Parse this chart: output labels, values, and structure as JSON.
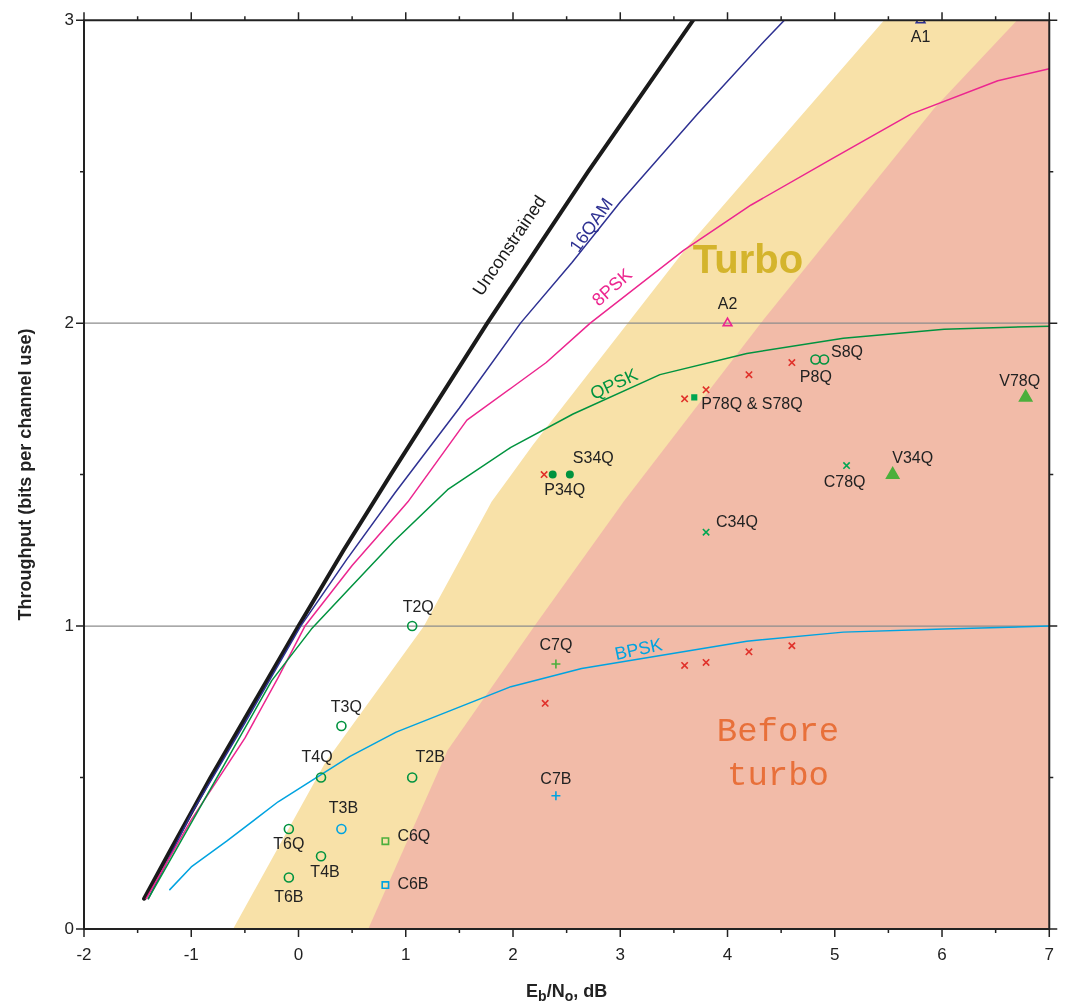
{
  "chart_data": {
    "type": "line",
    "xlabel": "E$_{b}$/N$_{o}$, dB",
    "ylabel": "Throughput (bits per channel use)",
    "xlim": [
      -2,
      7
    ],
    "ylim": [
      0,
      3
    ],
    "xticks": [
      -2,
      {
        "value": -1.5,
        "label": null
      },
      -1,
      {
        "value": -0.5,
        "label": null
      },
      0,
      {
        "value": 0.5,
        "label": null
      },
      1,
      {
        "value": 1.5,
        "label": null
      },
      2,
      {
        "value": 2.5,
        "label": null
      },
      3,
      {
        "value": 3.5,
        "label": null
      },
      4,
      {
        "value": 4.5,
        "label": null
      },
      5,
      {
        "value": 5.5,
        "label": null
      },
      6,
      {
        "value": 6.5,
        "label": null
      },
      7
    ],
    "yticks": [
      0,
      {
        "value": 0.5,
        "label": null
      },
      1,
      {
        "value": 1.5,
        "label": null
      },
      2,
      {
        "value": 2.5,
        "label": null
      },
      3
    ],
    "grid": "y",
    "legend": false,
    "series": [
      {
        "name": "Turbo",
        "type": "area",
        "color": "#f8e1a8",
        "x": [
          -0.61,
          0.25,
          1.17,
          1.8,
          2.19,
          3.62,
          5.46,
          7
        ],
        "values": [
          0,
          0.55,
          1.0,
          1.41,
          1.6,
          2.25,
          3.0,
          3.0
        ]
      },
      {
        "name": "Before turbo",
        "type": "area",
        "color": "#f2bba8",
        "x": [
          0.65,
          1.39,
          2.2,
          3.03,
          4.31,
          5.93,
          6.7,
          7
        ],
        "values": [
          0,
          0.59,
          1.0,
          1.41,
          2.0,
          2.71,
          3.0,
          3.0
        ]
      },
      {
        "name": "Unconstrained",
        "type": "line",
        "color": "#1a1a1a",
        "x": [
          -1.44,
          -1.21,
          -0.82,
          -0.41,
          0,
          0.42,
          0.86,
          1.31,
          1.76,
          2.23,
          2.7,
          3.19,
          3.68
        ],
        "values": [
          0.1,
          0.25,
          0.5,
          0.75,
          1,
          1.25,
          1.5,
          1.75,
          2,
          2.25,
          2.5,
          2.75,
          3
        ]
      },
      {
        "name": "16QAM",
        "type": "line",
        "color": "#2e3192",
        "x": [
          -1.4,
          -1.0,
          -0.5,
          0.02,
          0.45,
          0.9,
          1.5,
          2.07,
          2.55,
          3.0,
          3.72,
          4.34,
          4.53
        ],
        "values": [
          0.1,
          0.38,
          0.68,
          1.0,
          1.22,
          1.44,
          1.72,
          2.0,
          2.2,
          2.4,
          2.69,
          2.93,
          3.0
        ]
      },
      {
        "name": "8PSK",
        "type": "line",
        "color": "#ec268f",
        "x": [
          -1.42,
          -1.0,
          -0.5,
          -0.19,
          0.06,
          0.5,
          1.02,
          1.57,
          2.0,
          2.31,
          2.72,
          3.59,
          4.22,
          4.96,
          5.71,
          6.52,
          7.0
        ],
        "values": [
          0.1,
          0.36,
          0.63,
          0.83,
          1.0,
          1.2,
          1.41,
          1.68,
          1.79,
          1.87,
          2.0,
          2.24,
          2.39,
          2.54,
          2.69,
          2.8,
          2.84
        ]
      },
      {
        "name": "QPSK",
        "type": "line",
        "color": "#00933f",
        "x": [
          -1.4,
          -1.0,
          -0.6,
          -0.25,
          0.12,
          0.49,
          0.89,
          1.39,
          1.98,
          2.56,
          3.37,
          4.18,
          5.08,
          6.02,
          7.0
        ],
        "values": [
          0.1,
          0.35,
          0.6,
          0.82,
          0.99,
          1.13,
          1.28,
          1.45,
          1.59,
          1.7,
          1.83,
          1.9,
          1.95,
          1.98,
          1.99
        ]
      },
      {
        "name": "BPSK",
        "type": "line",
        "color": "#00a3e0",
        "x": [
          -1.2,
          -1.0,
          -0.67,
          -0.19,
          0.48,
          0.91,
          1.41,
          1.98,
          2.64,
          4.18,
          5.08,
          6.02,
          7.0
        ],
        "values": [
          0.13,
          0.205,
          0.29,
          0.42,
          0.57,
          0.65,
          0.72,
          0.8,
          0.86,
          0.95,
          0.98,
          0.99,
          1.0
        ]
      },
      {
        "type": "scatter",
        "color": "#2e3192",
        "marker": "triangle",
        "x": [
          5.8
        ],
        "values": [
          3.0
        ]
      },
      {
        "type": "scatter",
        "color": "#ec268f",
        "marker": "triangle",
        "x": [
          4.0
        ],
        "values": [
          2.0
        ]
      },
      {
        "type": "scatter",
        "color": "#00933f",
        "marker": "circle",
        "x": [
          1.06,
          0.4,
          0.21,
          1.06,
          -0.09,
          0.21,
          -0.09,
          4.82,
          4.9
        ],
        "values": [
          1.0,
          0.67,
          0.5,
          0.5,
          0.33,
          0.24,
          0.17,
          1.88,
          1.88
        ]
      },
      {
        "type": "scatter",
        "color": "#00a3e0",
        "marker": "circle",
        "x": [
          0.4
        ],
        "values": [
          0.33
        ]
      },
      {
        "type": "scatter",
        "color": "#4caf3c",
        "marker": "square",
        "x": [
          0.81
        ],
        "values": [
          0.29
        ]
      },
      {
        "type": "scatter",
        "color": "#00a3e0",
        "marker": "square",
        "x": [
          0.81
        ],
        "values": [
          0.145
        ]
      },
      {
        "type": "scatter",
        "color": "#4caf3c",
        "marker": "plus",
        "x": [
          2.4
        ],
        "values": [
          0.875
        ]
      },
      {
        "type": "scatter",
        "color": "#00a3e0",
        "marker": "plus",
        "x": [
          2.4
        ],
        "values": [
          0.44
        ]
      },
      {
        "type": "scatter",
        "color": "#e0312a",
        "marker": "cross",
        "x": [
          2.29,
          2.3,
          3.6,
          3.8,
          4.2,
          4.6,
          3.6,
          3.8,
          4.2,
          4.6
        ],
        "values": [
          1.5,
          0.745,
          0.87,
          0.88,
          0.915,
          0.935,
          1.75,
          1.78,
          1.83,
          1.87
        ]
      },
      {
        "type": "scatter",
        "color": "#00a651",
        "marker": "cross",
        "x": [
          3.8,
          5.11
        ],
        "values": [
          1.31,
          1.53
        ]
      },
      {
        "type": "scatter",
        "color": "#00933f",
        "marker": "circle",
        "x": [
          2.37,
          2.53
        ],
        "values": [
          1.5,
          1.5
        ]
      },
      {
        "type": "scatter",
        "color": "#00a651",
        "marker": "square",
        "x": [
          3.69
        ],
        "values": [
          1.755
        ]
      },
      {
        "type": "scatter",
        "color": "#4caf3c",
        "marker": "triangle",
        "x": [
          5.54,
          6.78
        ],
        "values": [
          1.5,
          1.755
        ]
      }
    ],
    "annotations": [
      {
        "text": "A1",
        "x": 5.8,
        "y": 3.0
      },
      {
        "text": "A2",
        "x": 4.0,
        "y": 2.0
      },
      {
        "text": "T2Q",
        "x": 1.06,
        "y": 1.0
      },
      {
        "text": "T3Q",
        "x": 0.4,
        "y": 0.67
      },
      {
        "text": "T4Q",
        "x": 0.21,
        "y": 0.5
      },
      {
        "text": "T2B",
        "x": 1.06,
        "y": 0.5
      },
      {
        "text": "T6Q",
        "x": -0.09,
        "y": 0.33
      },
      {
        "text": "T4B",
        "x": 0.21,
        "y": 0.24
      },
      {
        "text": "T6B",
        "x": -0.09,
        "y": 0.17
      },
      {
        "text": "T3B",
        "x": 0.4,
        "y": 0.33
      },
      {
        "text": "C6Q",
        "x": 0.81,
        "y": 0.29
      },
      {
        "text": "C6B",
        "x": 0.81,
        "y": 0.145
      },
      {
        "text": "C7Q",
        "x": 2.4,
        "y": 0.875
      },
      {
        "text": "C7B",
        "x": 2.4,
        "y": 0.44
      },
      {
        "text": "C34Q",
        "x": 3.8,
        "y": 1.31
      },
      {
        "text": "S34Q",
        "x": 2.53,
        "y": 1.5
      },
      {
        "text": "P34Q",
        "x": 2.37,
        "y": 1.5
      },
      {
        "text": "P78Q & S78Q",
        "x": 3.69,
        "y": 1.755
      },
      {
        "text": "S8Q",
        "x": 4.9,
        "y": 1.88
      },
      {
        "text": "P8Q",
        "x": 4.6,
        "y": 1.87
      },
      {
        "text": "C78Q",
        "x": 5.11,
        "y": 1.53
      },
      {
        "text": "V34Q",
        "x": 5.54,
        "y": 1.5
      },
      {
        "text": "V78Q",
        "x": 6.78,
        "y": 1.755
      }
    ]
  }
}
